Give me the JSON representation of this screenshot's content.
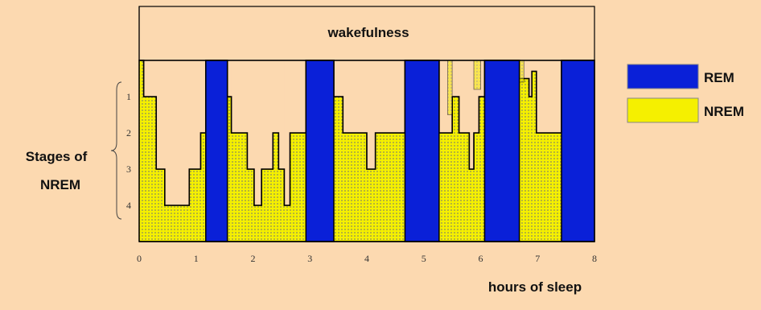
{
  "colors": {
    "background": "#fcd9b0",
    "rem": "#0a20d8",
    "nrem": "#f5f000",
    "line": "#000000",
    "hatch": "#8a8a60"
  },
  "chart_data": {
    "type": "area",
    "title": "",
    "xlabel": "hours of sleep",
    "ylabel": "Stages of NREM",
    "top_band_label": "wakefulness",
    "x_ticks": [
      "0",
      "1",
      "2",
      "3",
      "4",
      "5",
      "6",
      "7",
      "8"
    ],
    "y_ticks": [
      "1",
      "2",
      "3",
      "4"
    ],
    "xlim": [
      0,
      8
    ],
    "ylim_stage": [
      0,
      5
    ],
    "legend": {
      "position": "right",
      "items": [
        {
          "label": "REM",
          "color": "#0a20d8"
        },
        {
          "label": "NREM",
          "color": "#f5f000"
        }
      ]
    },
    "rem_periods": [
      {
        "start": 1.17,
        "end": 1.55
      },
      {
        "start": 2.93,
        "end": 3.42
      },
      {
        "start": 4.67,
        "end": 5.27
      },
      {
        "start": 6.07,
        "end": 6.68
      },
      {
        "start": 7.42,
        "end": 8.0
      }
    ],
    "hypnogram_steps": [
      [
        0.0,
        0.0
      ],
      [
        0.08,
        1
      ],
      [
        0.3,
        3
      ],
      [
        0.45,
        4
      ],
      [
        0.88,
        3
      ],
      [
        1.08,
        2
      ],
      [
        1.17,
        0
      ],
      [
        1.55,
        1
      ],
      [
        1.62,
        2
      ],
      [
        1.9,
        3
      ],
      [
        2.02,
        4
      ],
      [
        2.15,
        3
      ],
      [
        2.35,
        2
      ],
      [
        2.45,
        3
      ],
      [
        2.55,
        4
      ],
      [
        2.65,
        2
      ],
      [
        2.93,
        0
      ],
      [
        3.42,
        1
      ],
      [
        3.58,
        2
      ],
      [
        4.0,
        3
      ],
      [
        4.15,
        2
      ],
      [
        4.67,
        0
      ],
      [
        5.27,
        2
      ],
      [
        5.5,
        1
      ],
      [
        5.62,
        2
      ],
      [
        5.8,
        3
      ],
      [
        5.88,
        2
      ],
      [
        5.97,
        1
      ],
      [
        6.07,
        0
      ],
      [
        6.68,
        0.5
      ],
      [
        6.85,
        1
      ],
      [
        6.9,
        0.3
      ],
      [
        6.98,
        2
      ],
      [
        7.42,
        0
      ]
    ],
    "wake_blips": [
      {
        "start": 5.42,
        "end": 5.5,
        "depth": 1.5
      },
      {
        "start": 5.88,
        "end": 6.0,
        "depth": 0.8
      },
      {
        "start": 6.68,
        "end": 6.76,
        "depth": 0.6
      }
    ]
  }
}
